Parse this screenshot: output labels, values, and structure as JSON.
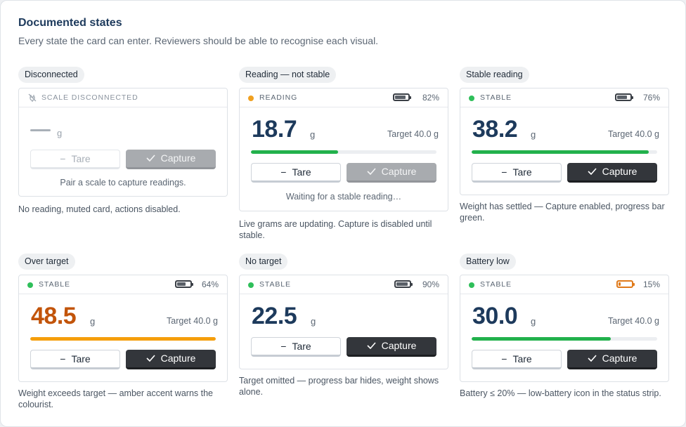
{
  "header": {
    "title": "Documented states",
    "subtitle": "Every state the card can enter. Reviewers should be able to recognise each visual."
  },
  "colors": {
    "navy": "#1d3a5c",
    "green": "#22b14c",
    "amber": "#f59e0b",
    "amber_text": "#c2540a",
    "capture_dark": "#33363b",
    "battery_low": "#e07a1a"
  },
  "states": {
    "disconnected": {
      "chip": "Disconnected",
      "status": "SCALE DISCONNECTED",
      "status_icon": "plug-off-icon",
      "unit": "g",
      "tare": "Tare",
      "capture": "Capture",
      "note": "Pair a scale to capture readings.",
      "caption": "No reading, muted card, actions disabled."
    },
    "reading": {
      "chip": "Reading — not stable",
      "status": "READING",
      "battery": "82%",
      "battery_level": 0.82,
      "weight": "18.7",
      "unit": "g",
      "target": "Target 40.0 g",
      "progress": 0.47,
      "tare": "Tare",
      "capture": "Capture",
      "note": "Waiting for a stable reading…",
      "caption": "Live grams are updating. Capture is disabled until stable."
    },
    "stable": {
      "chip": "Stable reading",
      "status": "STABLE",
      "battery": "76%",
      "battery_level": 0.76,
      "weight": "38.2",
      "unit": "g",
      "target": "Target 40.0 g",
      "progress": 0.955,
      "tare": "Tare",
      "capture": "Capture",
      "caption": "Weight has settled — Capture enabled, progress bar green."
    },
    "over": {
      "chip": "Over target",
      "status": "STABLE",
      "battery": "64%",
      "battery_level": 0.64,
      "weight": "48.5",
      "unit": "g",
      "target": "Target 40.0 g",
      "progress": 1.0,
      "tare": "Tare",
      "capture": "Capture",
      "caption": "Weight exceeds target — amber accent warns the colourist."
    },
    "notarget": {
      "chip": "No target",
      "status": "STABLE",
      "battery": "90%",
      "battery_level": 0.9,
      "weight": "22.5",
      "unit": "g",
      "tare": "Tare",
      "capture": "Capture",
      "caption": "Target omitted — progress bar hides, weight shows alone."
    },
    "batterylow": {
      "chip": "Battery low",
      "status": "STABLE",
      "battery": "15%",
      "battery_level": 0.15,
      "weight": "30.0",
      "unit": "g",
      "target": "Target 40.0 g",
      "progress": 0.75,
      "tare": "Tare",
      "capture": "Capture",
      "caption": "Battery ≤ 20% — low-battery icon in the status strip."
    }
  }
}
